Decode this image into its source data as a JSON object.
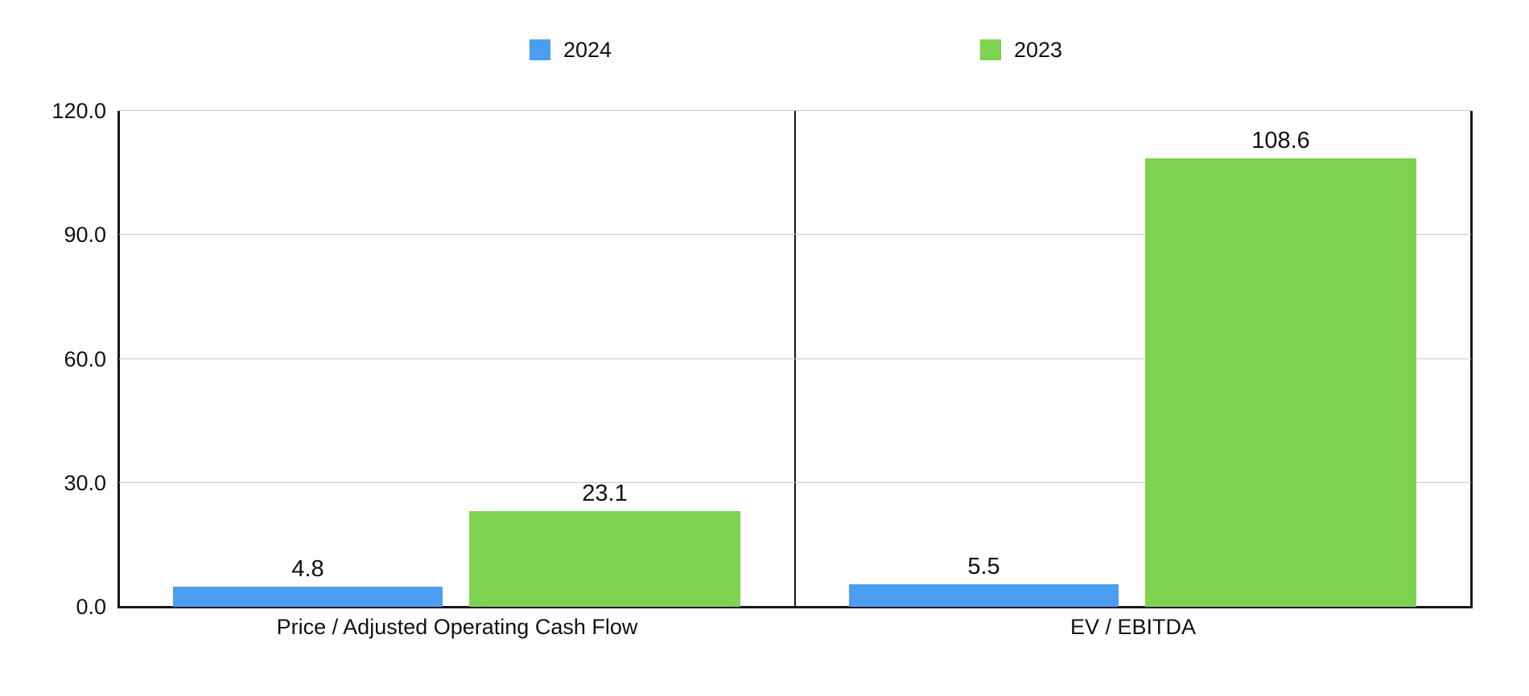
{
  "chart_data": {
    "type": "bar",
    "title": "",
    "categories": [
      "Price / Adjusted Operating Cash Flow",
      "EV / EBITDA"
    ],
    "series": [
      {
        "name": "2024",
        "color": "#4a9df0",
        "values": [
          4.8,
          5.5
        ]
      },
      {
        "name": "2023",
        "color": "#7dd250",
        "values": [
          23.1,
          108.6
        ]
      }
    ],
    "data_labels": [
      [
        "4.8",
        "5.5"
      ],
      [
        "23.1",
        "108.6"
      ]
    ],
    "ylabel": "",
    "xlabel": "",
    "ylim": [
      0,
      120
    ],
    "ytick_labels": [
      "0.0",
      "30.0",
      "60.0",
      "90.0",
      "120.0"
    ],
    "ytick_values": [
      0,
      30,
      60,
      90,
      120
    ],
    "grid": "horizontal",
    "gridline_color": "#c6c6c6",
    "axis_color": "#161616",
    "legend_position": "top"
  }
}
